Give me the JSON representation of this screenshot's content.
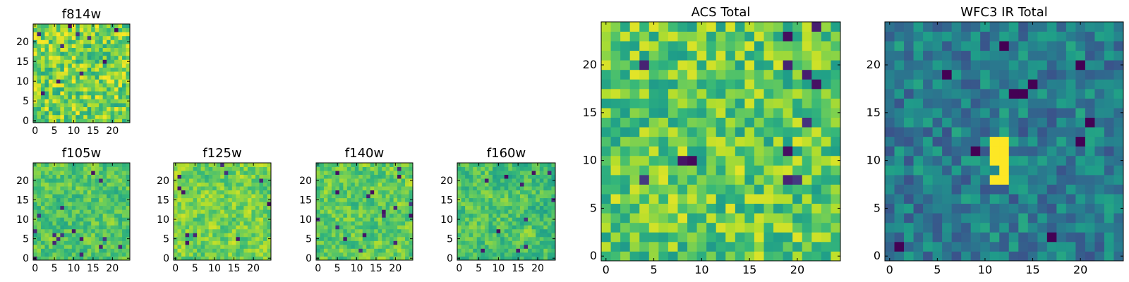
{
  "chart_data": [
    {
      "type": "heatmap",
      "title": "f814w",
      "xlim": [
        0,
        24
      ],
      "ylim": [
        0,
        24
      ],
      "xticks": [
        "0",
        "5",
        "10",
        "15",
        "20"
      ],
      "yticks": [
        "0",
        "5",
        "10",
        "15",
        "20"
      ],
      "colormap": "viridis",
      "grid_size": 25,
      "texture": "noisy",
      "bright_level": 0.8,
      "seed": 11
    },
    {
      "type": "heatmap",
      "title": "f105w",
      "xlim": [
        0,
        24
      ],
      "ylim": [
        0,
        24
      ],
      "xticks": [
        "0",
        "5",
        "10",
        "15",
        "20"
      ],
      "yticks": [
        "0",
        "5",
        "10",
        "15",
        "20"
      ],
      "colormap": "viridis",
      "grid_size": 25,
      "texture": "smooth",
      "bright_level": 0.74,
      "seed": 23
    },
    {
      "type": "heatmap",
      "title": "f125w",
      "xlim": [
        0,
        24
      ],
      "ylim": [
        0,
        24
      ],
      "xticks": [
        "0",
        "5",
        "10",
        "15",
        "20"
      ],
      "yticks": [
        "0",
        "5",
        "10",
        "15",
        "20"
      ],
      "colormap": "viridis",
      "grid_size": 25,
      "texture": "smooth",
      "bright_level": 0.8,
      "seed": 37
    },
    {
      "type": "heatmap",
      "title": "f140w",
      "xlim": [
        0,
        24
      ],
      "ylim": [
        0,
        24
      ],
      "xticks": [
        "0",
        "5",
        "10",
        "15",
        "20"
      ],
      "yticks": [
        "0",
        "5",
        "10",
        "15",
        "20"
      ],
      "colormap": "viridis",
      "grid_size": 25,
      "texture": "smooth",
      "bright_level": 0.76,
      "seed": 41
    },
    {
      "type": "heatmap",
      "title": "f160w",
      "xlim": [
        0,
        24
      ],
      "ylim": [
        0,
        24
      ],
      "xticks": [
        "0",
        "5",
        "10",
        "15",
        "20"
      ],
      "yticks": [
        "0",
        "5",
        "10",
        "15",
        "20"
      ],
      "colormap": "viridis",
      "grid_size": 25,
      "texture": "smooth",
      "bright_level": 0.72,
      "seed": 53
    },
    {
      "type": "heatmap",
      "title": "ACS Total",
      "xlim": [
        0,
        24
      ],
      "ylim": [
        0,
        24
      ],
      "xticks": [
        "0",
        "5",
        "10",
        "15",
        "20"
      ],
      "yticks": [
        "0",
        "5",
        "10",
        "15",
        "20"
      ],
      "colormap": "viridis",
      "grid_size": 25,
      "texture": "noisy",
      "bright_level": 0.76,
      "seed": 67
    },
    {
      "type": "heatmap",
      "title": "WFC3 IR Total",
      "xlim": [
        0,
        24
      ],
      "ylim": [
        0,
        24
      ],
      "xticks": [
        "0",
        "5",
        "10",
        "15",
        "20"
      ],
      "yticks": [
        "0",
        "5",
        "10",
        "15",
        "20"
      ],
      "colormap": "viridis",
      "grid_size": 25,
      "texture": "dim",
      "bright_level": 0.4,
      "seed": 79,
      "bright_pixels": [
        [
          11,
          10
        ],
        [
          11,
          11
        ],
        [
          12,
          10
        ],
        [
          12,
          11
        ],
        [
          12,
          12
        ],
        [
          11,
          12
        ],
        [
          12,
          9
        ],
        [
          12,
          8
        ],
        [
          11,
          8
        ]
      ]
    }
  ]
}
